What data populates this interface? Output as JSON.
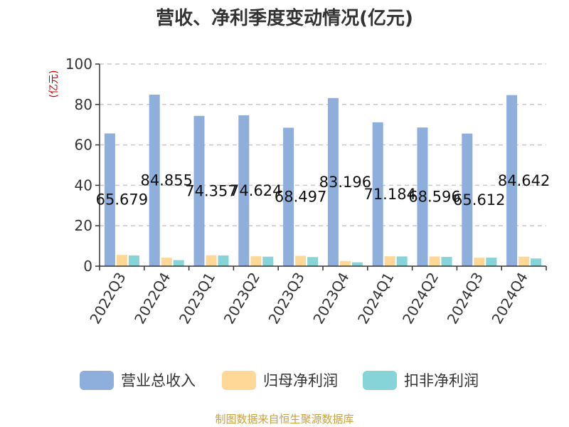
{
  "chart_data": {
    "type": "bar",
    "title": "营收、净利季度变动情况(亿元)",
    "ylabel": "(亿元)",
    "ylim": [
      0,
      100
    ],
    "yticks": [
      0,
      20,
      40,
      60,
      80,
      100
    ],
    "grid": true,
    "legend_position": "bottom",
    "categories": [
      "2022Q3",
      "2022Q4",
      "2023Q1",
      "2023Q2",
      "2023Q3",
      "2023Q4",
      "2024Q1",
      "2024Q2",
      "2024Q3",
      "2024Q4"
    ],
    "series": [
      {
        "name": "营业总收入",
        "color": "#8EAEDC",
        "values": [
          65.679,
          84.855,
          74.357,
          74.624,
          68.497,
          83.196,
          71.184,
          68.596,
          65.612,
          84.642
        ],
        "labels": [
          "65.679",
          "84.855",
          "74.357",
          "74.624",
          "68.497",
          "83.196",
          "71.184",
          "68.596",
          "65.612",
          "84.642"
        ]
      },
      {
        "name": "归母净利润",
        "color": "#FFD898",
        "values": [
          5.6,
          4.2,
          5.4,
          4.9,
          5.1,
          2.6,
          4.9,
          4.8,
          4.2,
          4.7
        ]
      },
      {
        "name": "扣非净利润",
        "color": "#86D4D8",
        "values": [
          5.3,
          3.0,
          5.3,
          4.7,
          4.5,
          1.9,
          4.8,
          4.6,
          4.2,
          3.8
        ]
      }
    ]
  },
  "source": "制图数据来自恒生聚源数据库"
}
